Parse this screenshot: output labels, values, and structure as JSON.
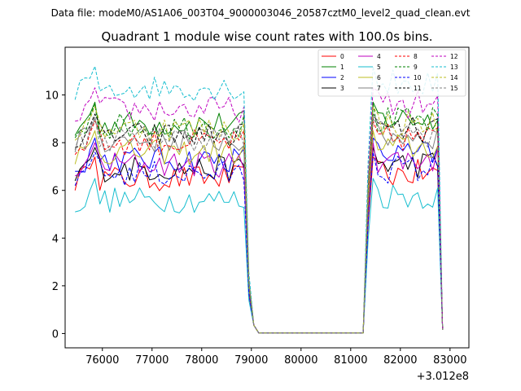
{
  "chart_data": {
    "type": "line",
    "suptitle": "Data file: modeM0/AS1A06_003T04_9000003046_20587cztM0_level2_quad_clean.evt",
    "title": "Quadrant 1 module wise count rates with 100.0s bins.",
    "xlabel": "",
    "ylabel": "",
    "x_offset_label": "+3.012e8",
    "xlim": [
      75250,
      83380
    ],
    "ylim": [
      -0.6,
      12.0
    ],
    "x_ticks": [
      76000,
      77000,
      78000,
      79000,
      80000,
      81000,
      82000,
      83000
    ],
    "x_tick_labels": [
      "76000",
      "77000",
      "78000",
      "79000",
      "80000",
      "81000",
      "82000",
      "83000"
    ],
    "y_ticks": [
      0,
      2,
      4,
      6,
      8,
      10
    ],
    "y_tick_labels": [
      "0",
      "2",
      "4",
      "6",
      "8",
      "10"
    ],
    "legend_position": "top-right",
    "x_first": 75450,
    "x_step": 100,
    "segment1_points": 36,
    "gap_points": 23,
    "segment2_points": 16,
    "series": [
      {
        "name": "0",
        "color": "#ff0000",
        "style": "solid",
        "level": 6.5
      },
      {
        "name": "1",
        "color": "#008000",
        "style": "solid",
        "level": 8.8
      },
      {
        "name": "2",
        "color": "#0000ff",
        "style": "solid",
        "level": 7.3
      },
      {
        "name": "3",
        "color": "#000000",
        "style": "solid",
        "level": 6.9
      },
      {
        "name": "4",
        "color": "#bf00bf",
        "style": "solid",
        "level": 7.1
      },
      {
        "name": "5",
        "color": "#17becf",
        "style": "solid",
        "level": 5.6
      },
      {
        "name": "6",
        "color": "#bcbd22",
        "style": "solid",
        "level": 7.6
      },
      {
        "name": "7",
        "color": "#808080",
        "style": "solid",
        "level": 8.1
      },
      {
        "name": "8",
        "color": "#ff0000",
        "style": "dashed",
        "level": 8.0
      },
      {
        "name": "9",
        "color": "#008000",
        "style": "dashed",
        "level": 8.7
      },
      {
        "name": "10",
        "color": "#0000ff",
        "style": "dashed",
        "level": 6.7
      },
      {
        "name": "11",
        "color": "#000000",
        "style": "dashed",
        "level": 8.3
      },
      {
        "name": "12",
        "color": "#bf00bf",
        "style": "dashed",
        "level": 9.4
      },
      {
        "name": "13",
        "color": "#17becf",
        "style": "dashed",
        "level": 10.3
      },
      {
        "name": "14",
        "color": "#bcbd22",
        "style": "dashed",
        "level": 8.6
      },
      {
        "name": "15",
        "color": "#808080",
        "style": "dashed",
        "level": 8.2
      }
    ]
  }
}
